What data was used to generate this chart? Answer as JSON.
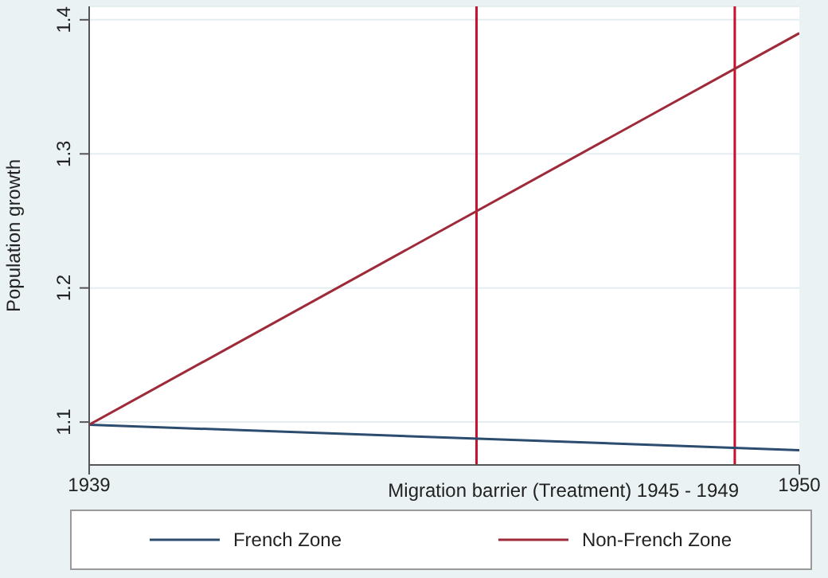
{
  "chart_data": {
    "type": "line",
    "xlabel": "Migration barrier (Treatment) 1945 - 1949",
    "ylabel": "Population growth",
    "x": [
      1939,
      1950
    ],
    "series": [
      {
        "name": "French Zone",
        "color": "#2b4c6f",
        "values": [
          1.098,
          1.079
        ]
      },
      {
        "name": "Non-French Zone",
        "color": "#9e2a3a",
        "values": [
          1.098,
          1.39
        ]
      }
    ],
    "xlim": [
      1939,
      1950
    ],
    "xticks": [
      1939,
      1950
    ],
    "ylim": [
      1.068,
      1.41
    ],
    "yticks": [
      1.1,
      1.2,
      1.3,
      1.4
    ],
    "ref_lines": [
      {
        "axis": "x",
        "value": 1945,
        "color": "#c8102e"
      },
      {
        "axis": "x",
        "value": 1949,
        "color": "#c8102e"
      }
    ],
    "grid": "y",
    "legend": "bottom",
    "marker": "none",
    "line_style": "solid"
  }
}
